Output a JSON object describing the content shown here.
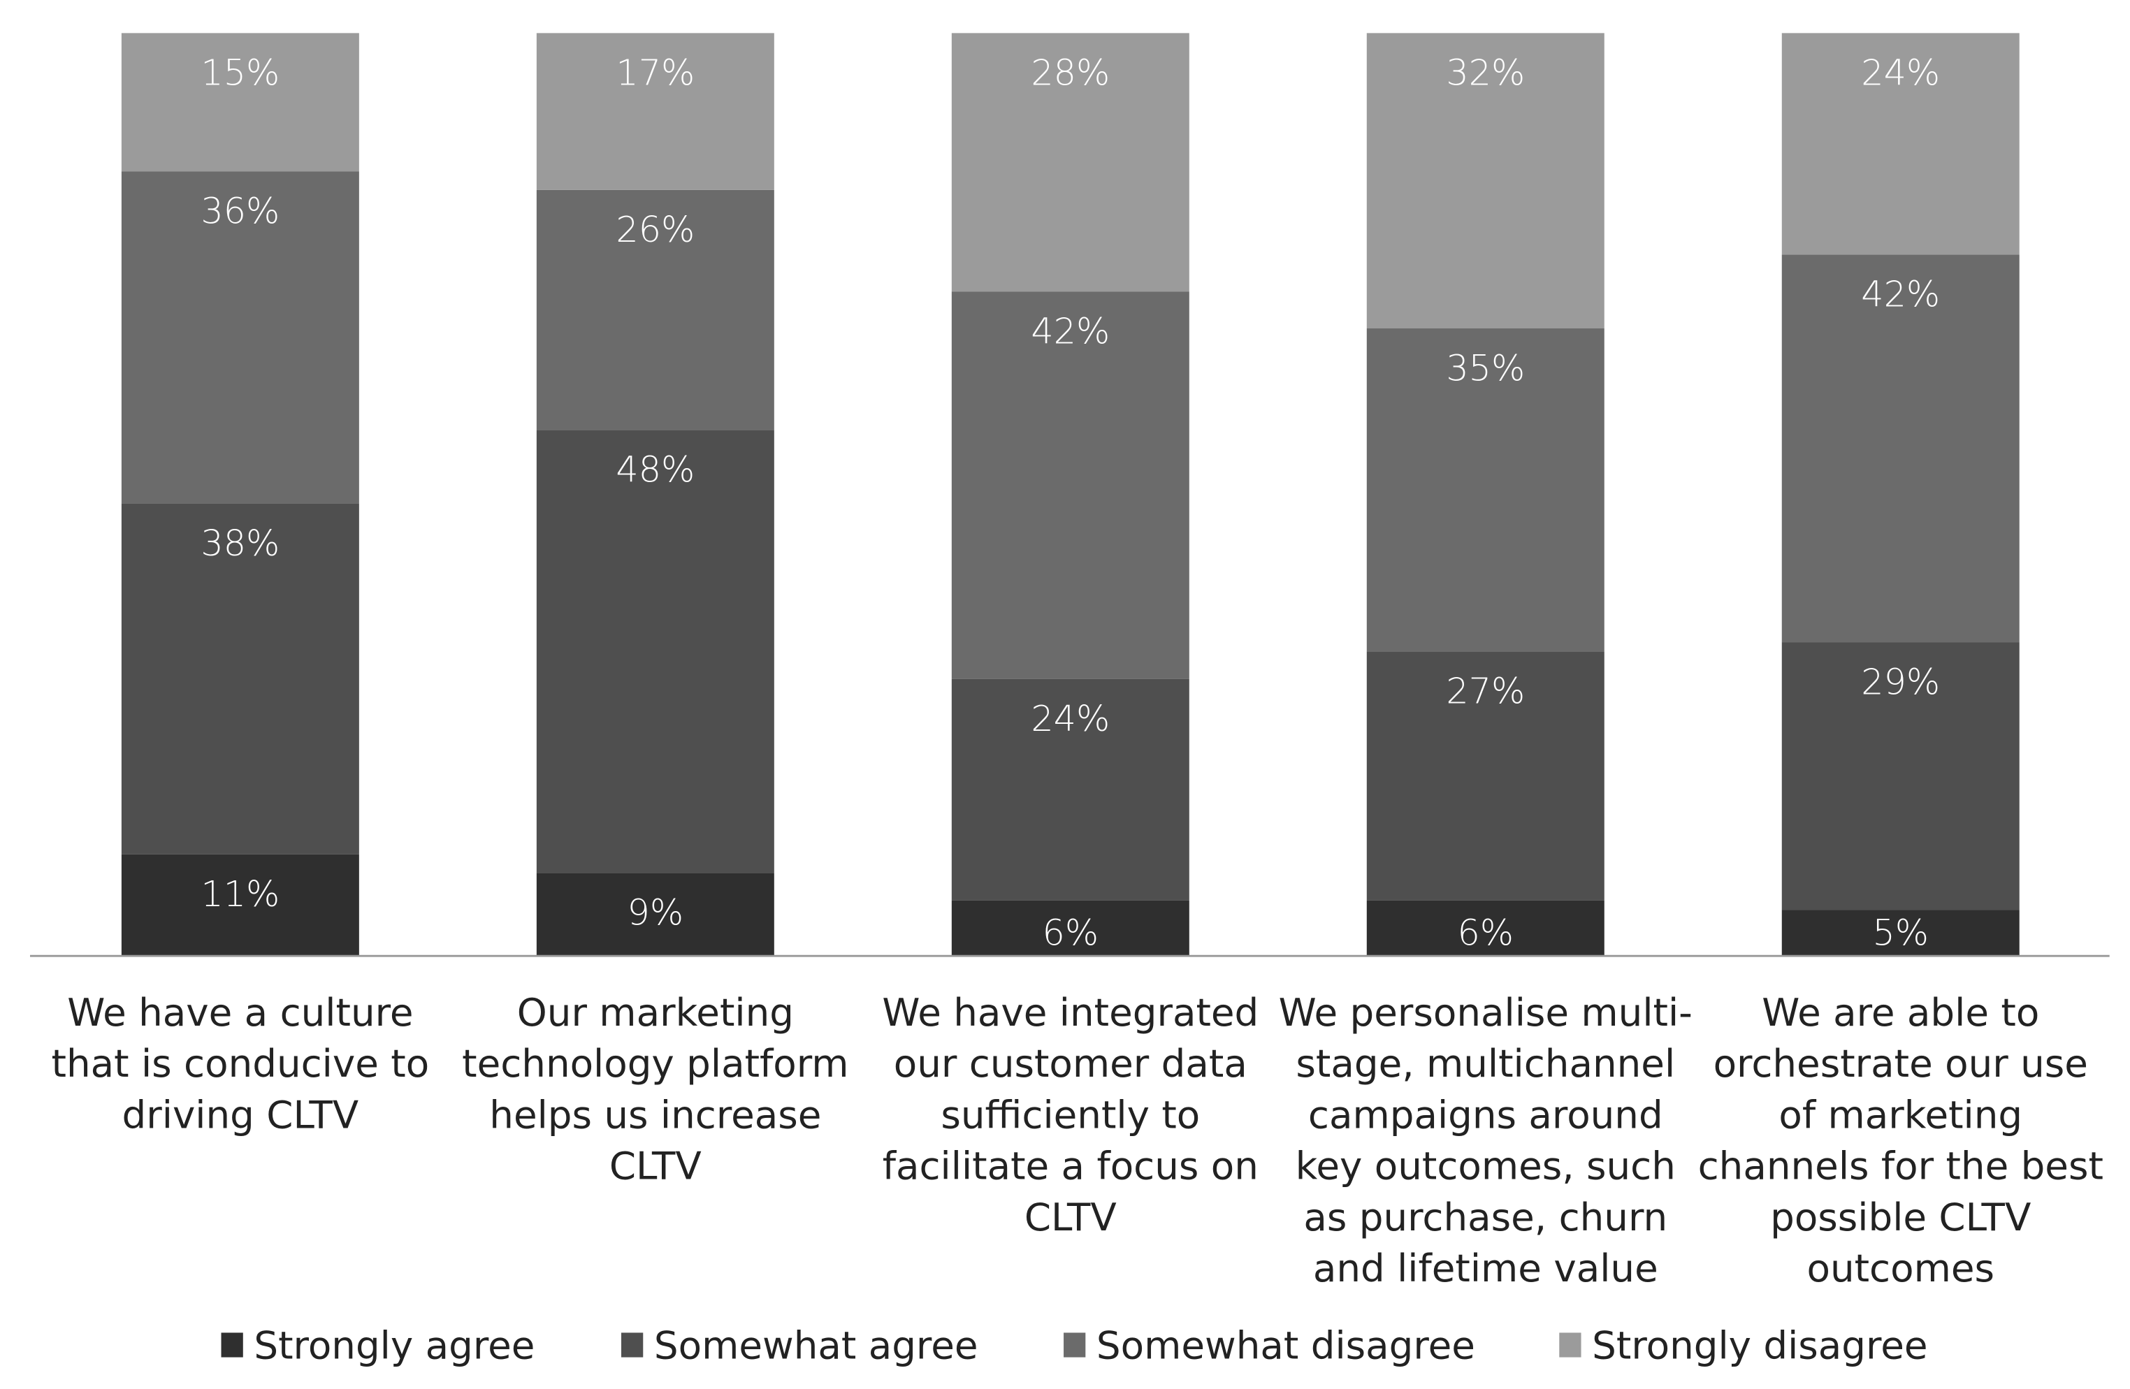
{
  "chart_data": {
    "type": "bar",
    "stacked": true,
    "categories": [
      [
        "We have a culture",
        "that is conducive to",
        "driving CLTV"
      ],
      [
        "Our marketing",
        "technology platform",
        "helps us increase",
        "CLTV"
      ],
      [
        "We have integrated",
        "our customer data",
        "sufficiently to",
        "facilitate a focus on",
        "CLTV"
      ],
      [
        "We personalise multi-",
        "stage, multichannel",
        "campaigns around",
        "key outcomes, such",
        "as purchase, churn",
        "and lifetime value"
      ],
      [
        "We are able to",
        "orchestrate our use",
        "of marketing",
        "channels for the best",
        "possible CLTV",
        "outcomes"
      ]
    ],
    "series": [
      {
        "name": "Strongly agree",
        "color": "#2f2f2f",
        "values": [
          11,
          9,
          6,
          6,
          5
        ]
      },
      {
        "name": "Somewhat agree",
        "color": "#4f4f4f",
        "values": [
          38,
          48,
          24,
          27,
          29
        ]
      },
      {
        "name": "Somewhat disagree",
        "color": "#6b6b6b",
        "values": [
          36,
          26,
          42,
          35,
          42
        ]
      },
      {
        "name": "Strongly disagree",
        "color": "#9b9b9b",
        "values": [
          15,
          17,
          28,
          32,
          24
        ]
      }
    ],
    "value_suffix": "%",
    "ylim": [
      0,
      100
    ],
    "grid": false,
    "legend": "bottom"
  }
}
